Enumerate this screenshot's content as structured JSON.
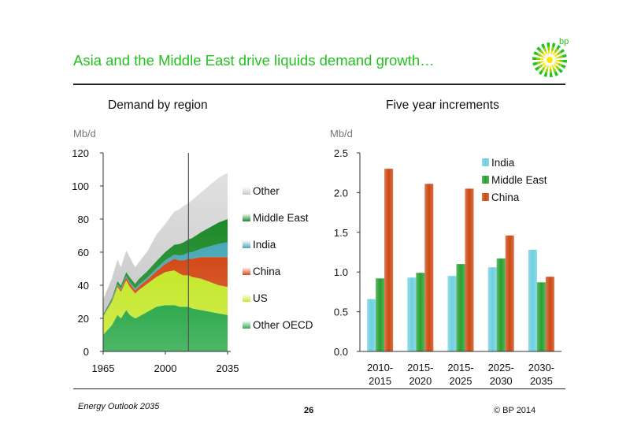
{
  "header": {
    "title": "Asia and the Middle East drive liquids demand growth…",
    "logo_text": "bp"
  },
  "footer": {
    "left": "Energy Outlook 2035",
    "page": "26",
    "right": "© BP 2014"
  },
  "colors": {
    "accent_green": "#22c21e",
    "other": "#c8c8c8",
    "middle_east": "#1d8a2a",
    "india": "#4aa8b8",
    "china": "#d24a18",
    "us": "#c6e82c",
    "other_oecd": "#2faa4e"
  },
  "chart_data": [
    {
      "type": "area",
      "title": "Demand by region",
      "ylabel": "Mb/d",
      "ylim": [
        0,
        120
      ],
      "yticks": [
        "0",
        "20",
        "40",
        "60",
        "80",
        "100",
        "120"
      ],
      "xlim": [
        1965,
        2035
      ],
      "xticks": [
        "1965",
        "2000",
        "2035"
      ],
      "divider_year": 2013,
      "x": [
        1965,
        1970,
        1973,
        1975,
        1978,
        1980,
        1983,
        1985,
        1990,
        1995,
        2000,
        2005,
        2008,
        2010,
        2013,
        2015,
        2020,
        2025,
        2030,
        2035
      ],
      "series": [
        {
          "name": "Other OECD",
          "color": "#2faa4e",
          "values": [
            10,
            16,
            22,
            20,
            25,
            22,
            20,
            21,
            24,
            27,
            28,
            28,
            27,
            27,
            27,
            26,
            25,
            24,
            23,
            22
          ]
        },
        {
          "name": "US",
          "color": "#c6e82c",
          "values": [
            11,
            14,
            17,
            16,
            18,
            17,
            15,
            16,
            17,
            18,
            20,
            21,
            20,
            19,
            19,
            19,
            19,
            18,
            17,
            17
          ]
        },
        {
          "name": "China",
          "color": "#d24a18",
          "values": [
            0.2,
            0.5,
            1,
            1.3,
            1.8,
            2,
            2,
            2.2,
            2.5,
            3.5,
            5,
            7,
            8,
            9,
            10,
            11,
            13,
            15,
            17,
            18
          ]
        },
        {
          "name": "India",
          "color": "#4aa8b8",
          "values": [
            0.3,
            0.4,
            0.5,
            0.6,
            0.7,
            0.8,
            0.9,
            1,
            1.2,
            1.6,
            2.2,
            2.5,
            3,
            3.3,
            3.7,
            4,
            5,
            6.5,
            8,
            9
          ]
        },
        {
          "name": "Middle East",
          "color": "#1d8a2a",
          "values": [
            1,
            1.5,
            2,
            2,
            2.5,
            3,
            3,
            3.5,
            4,
            4.5,
            5,
            6,
            7,
            7.5,
            8,
            8.5,
            10,
            11.5,
            13,
            14
          ]
        },
        {
          "name": "Other",
          "color": "#c8c8c8",
          "values": [
            9,
            12,
            13,
            11,
            13,
            12,
            10,
            10,
            12,
            16,
            17,
            20,
            21,
            22,
            22,
            23,
            24,
            25.5,
            27,
            28
          ]
        }
      ],
      "legend": [
        "Other",
        "Middle East",
        "India",
        "China",
        "US",
        "Other OECD"
      ]
    },
    {
      "type": "bar",
      "title": "Five year increments",
      "ylabel": "Mb/d",
      "ylim": [
        0,
        2.5
      ],
      "yticks": [
        "0.0",
        "0.5",
        "1.0",
        "1.5",
        "2.0",
        "2.5"
      ],
      "categories": [
        "2010-\n2015",
        "2015-\n2020",
        "2015-\n2025",
        "2025-\n2030",
        "2030-\n2035"
      ],
      "category_lines": [
        [
          "2010-",
          "2015"
        ],
        [
          "2015-",
          "2020"
        ],
        [
          "2015-",
          "2025"
        ],
        [
          "2025-",
          "2030"
        ],
        [
          "2030-",
          "2035"
        ]
      ],
      "series": [
        {
          "name": "India",
          "color": "#6fd0e0",
          "values": [
            0.66,
            0.93,
            0.95,
            1.06,
            1.28
          ]
        },
        {
          "name": "Middle East",
          "color": "#28a032",
          "values": [
            0.92,
            0.99,
            1.1,
            1.17,
            0.87
          ]
        },
        {
          "name": "China",
          "color": "#cc4a14",
          "values": [
            2.3,
            2.11,
            2.05,
            1.46,
            0.94
          ]
        }
      ],
      "legend_position": "top-right"
    }
  ]
}
